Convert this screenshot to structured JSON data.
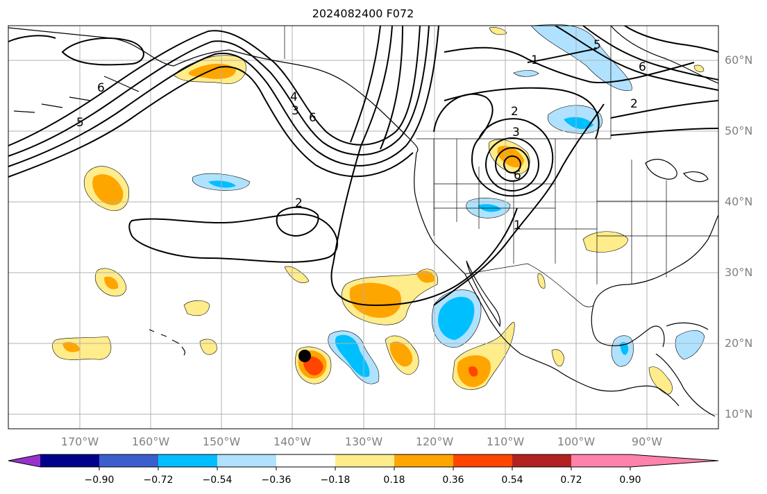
{
  "title": "2024082400 F072",
  "lat_labels": [
    "60°N",
    "50°N",
    "40°N",
    "30°N",
    "20°N",
    "10°N"
  ],
  "lon_labels": [
    "170°W",
    "160°W",
    "150°W",
    "140°W",
    "130°W",
    "120°W",
    "110°W",
    "100°W",
    "90°W"
  ],
  "colorbar": {
    "ticks": [
      "−0.90",
      "−0.72",
      "−0.54",
      "−0.36",
      "−0.18",
      "0.18",
      "0.36",
      "0.54",
      "0.72",
      "0.90"
    ],
    "colors": [
      "#9932cc",
      "#00008b",
      "#3a5fcd",
      "#00bfff",
      "#b0e2ff",
      "#ffffff",
      "#ffec8b",
      "#ffa500",
      "#ff4500",
      "#b22222",
      "#ff82ab"
    ]
  },
  "contour_labels": [
    "1",
    "2",
    "3",
    "4",
    "5",
    "6"
  ],
  "colors": {
    "axis_text": "#808080",
    "grid": "#b0b0b0",
    "contour": "#000000"
  }
}
